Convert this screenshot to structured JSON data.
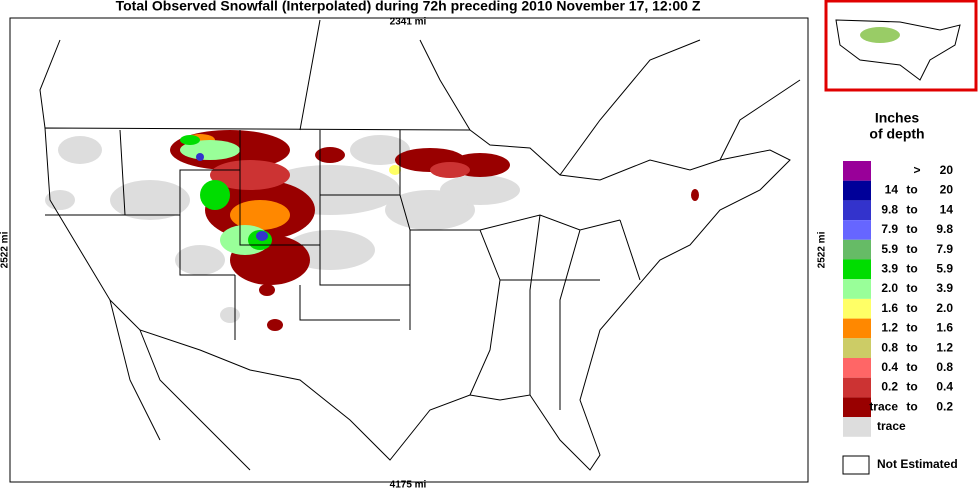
{
  "header": {
    "title": "Total Observed Snowfall (Interpolated) during 72h preceding 2010 November 17, 12:00 Z"
  },
  "map": {
    "top_label": "2341 mi",
    "bottom_label": "4175 mi",
    "left_label": "2522 mi",
    "right_label": "2522 mi"
  },
  "legend": {
    "title_line1": "Inches",
    "title_line2": "of depth",
    "items": [
      {
        "color": "#990099",
        "sep": ">",
        "high": "20"
      },
      {
        "color": "#000099",
        "low": "14",
        "sep": "to",
        "high": "20"
      },
      {
        "color": "#3333cc",
        "low": "9.8",
        "sep": "to",
        "high": "14"
      },
      {
        "color": "#6666ff",
        "low": "7.9",
        "sep": "to",
        "high": "9.8"
      },
      {
        "color": "#66bb66",
        "low": "5.9",
        "sep": "to",
        "high": "7.9"
      },
      {
        "color": "#00dd00",
        "low": "3.9",
        "sep": "to",
        "high": "5.9"
      },
      {
        "color": "#99ff99",
        "low": "2.0",
        "sep": "to",
        "high": "3.9"
      },
      {
        "color": "#ffff66",
        "low": "1.6",
        "sep": "to",
        "high": "2.0"
      },
      {
        "color": "#ff8800",
        "low": "1.2",
        "sep": "to",
        "high": "1.6"
      },
      {
        "color": "#cccc66",
        "low": "0.8",
        "sep": "to",
        "high": "1.2"
      },
      {
        "color": "#ff6666",
        "low": "0.4",
        "sep": "to",
        "high": "0.8"
      },
      {
        "color": "#cc3333",
        "low": "0.2",
        "sep": "to",
        "high": "0.4"
      },
      {
        "color": "#990000",
        "low": "trace",
        "sep": "to",
        "high": "0.2"
      },
      {
        "color": "#dddddd",
        "low": "trace"
      }
    ],
    "not_estimated": "Not Estimated"
  }
}
